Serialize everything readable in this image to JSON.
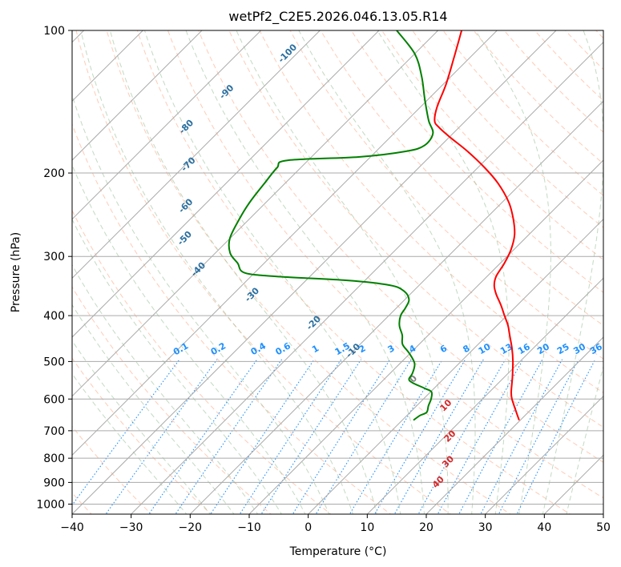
{
  "chart_data": {
    "type": "skew-t",
    "title": "wetPf2_C2E5.2026.046.13.05.R14",
    "xlabel": "Temperature (°C)",
    "ylabel": "Pressure (hPa)",
    "xlim": [
      -40,
      50
    ],
    "ylim": [
      1050,
      100
    ],
    "x_ticks": [
      -40,
      -30,
      -20,
      -10,
      0,
      10,
      20,
      30,
      40,
      50
    ],
    "x_tick_labels": [
      "−40",
      "−30",
      "−20",
      "−10",
      "0",
      "10",
      "20",
      "30",
      "40",
      "50"
    ],
    "y_ticks": [
      1000,
      900,
      800,
      700,
      600,
      500,
      400,
      300,
      200,
      100
    ],
    "y_tick_labels": [
      "1000",
      "900",
      "800",
      "700",
      "600",
      "500",
      "400",
      "300",
      "200",
      "100"
    ],
    "grid": true,
    "colors": {
      "temperature": "#ff0000",
      "dewpoint": "#008000",
      "isotherm": "#aaaaaa",
      "dry_adiabat": "#ffa07a",
      "moist_adiabat": "#8fbc8f",
      "mixing_ratio": "#1e90ff",
      "label_dark": "#2a6fa0",
      "label_light": "#1e90ff",
      "label_warm": "#d62728",
      "label_zero": "#808080",
      "tan_curve": "#d2b48c"
    },
    "series": [
      {
        "name": "Temperature",
        "color": "#ff0000",
        "points": [
          {
            "p": 665,
            "t": 19.8
          },
          {
            "p": 640,
            "t": 18.0
          },
          {
            "p": 600,
            "t": 15.0
          },
          {
            "p": 580,
            "t": 13.7
          },
          {
            "p": 540,
            "t": 11.4
          },
          {
            "p": 500,
            "t": 8.8
          },
          {
            "p": 470,
            "t": 6.5
          },
          {
            "p": 440,
            "t": 3.8
          },
          {
            "p": 420,
            "t": 1.9
          },
          {
            "p": 400,
            "t": -0.4
          },
          {
            "p": 380,
            "t": -2.8
          },
          {
            "p": 360,
            "t": -5.5
          },
          {
            "p": 345,
            "t": -7.3
          },
          {
            "p": 330,
            "t": -8.5
          },
          {
            "p": 310,
            "t": -9.3
          },
          {
            "p": 290,
            "t": -10.5
          },
          {
            "p": 270,
            "t": -12.4
          },
          {
            "p": 250,
            "t": -15.3
          },
          {
            "p": 230,
            "t": -19.0
          },
          {
            "p": 210,
            "t": -24.0
          },
          {
            "p": 195,
            "t": -28.8
          },
          {
            "p": 180,
            "t": -34.5
          },
          {
            "p": 168,
            "t": -39.9
          },
          {
            "p": 160,
            "t": -43.5
          },
          {
            "p": 155,
            "t": -45.3
          },
          {
            "p": 145,
            "t": -47.2
          },
          {
            "p": 130,
            "t": -49.5
          },
          {
            "p": 115,
            "t": -52.5
          },
          {
            "p": 100,
            "t": -56.0
          }
        ]
      },
      {
        "name": "Dewpoint",
        "color": "#008000",
        "points": [
          {
            "p": 665,
            "t": 1.9
          },
          {
            "p": 650,
            "t": 2.2
          },
          {
            "p": 640,
            "t": 2.8
          },
          {
            "p": 620,
            "t": 2.0
          },
          {
            "p": 600,
            "t": 1.3
          },
          {
            "p": 580,
            "t": 0.2
          },
          {
            "p": 570,
            "t": -1.5
          },
          {
            "p": 555,
            "t": -4.5
          },
          {
            "p": 545,
            "t": -5.8
          },
          {
            "p": 530,
            "t": -6.2
          },
          {
            "p": 505,
            "t": -7.5
          },
          {
            "p": 480,
            "t": -10.2
          },
          {
            "p": 460,
            "t": -12.8
          },
          {
            "p": 440,
            "t": -14.4
          },
          {
            "p": 420,
            "t": -16.5
          },
          {
            "p": 400,
            "t": -18.0
          },
          {
            "p": 385,
            "t": -18.5
          },
          {
            "p": 370,
            "t": -19.3
          },
          {
            "p": 355,
            "t": -21.6
          },
          {
            "p": 345,
            "t": -25.0
          },
          {
            "p": 337,
            "t": -33.0
          },
          {
            "p": 331,
            "t": -45.0
          },
          {
            "p": 325,
            "t": -51.6
          },
          {
            "p": 310,
            "t": -54.5
          },
          {
            "p": 295,
            "t": -57.5
          },
          {
            "p": 275,
            "t": -60.0
          },
          {
            "p": 250,
            "t": -61.7
          },
          {
            "p": 230,
            "t": -62.8
          },
          {
            "p": 210,
            "t": -63.5
          },
          {
            "p": 195,
            "t": -64.0
          },
          {
            "p": 188,
            "t": -63.5
          },
          {
            "p": 185,
            "t": -52.0
          },
          {
            "p": 180,
            "t": -45.0
          },
          {
            "p": 175,
            "t": -42.8
          },
          {
            "p": 165,
            "t": -43.4
          },
          {
            "p": 155,
            "t": -46.3
          },
          {
            "p": 140,
            "t": -50.5
          },
          {
            "p": 125,
            "t": -55.0
          },
          {
            "p": 112,
            "t": -60.0
          },
          {
            "p": 100,
            "t": -67.0
          }
        ]
      }
    ],
    "background_labels": {
      "dry_adiabats": [
        {
          "text": "-100",
          "value": -100
        },
        {
          "text": "-90",
          "value": -90
        },
        {
          "text": "-80",
          "value": -80
        },
        {
          "text": "-70",
          "value": -70
        },
        {
          "text": "-60",
          "value": -60
        },
        {
          "text": "-50",
          "value": -50
        },
        {
          "text": "-40",
          "value": -40
        },
        {
          "text": "-30",
          "value": -30
        },
        {
          "text": "-20",
          "value": -20
        },
        {
          "text": "-10",
          "value": -10
        },
        {
          "text": "0",
          "value": 0
        },
        {
          "text": "10",
          "value": 10
        },
        {
          "text": "20",
          "value": 20
        },
        {
          "text": "30",
          "value": 30
        },
        {
          "text": "40",
          "value": 40
        }
      ],
      "mixing_ratios": [
        {
          "text": "0.1",
          "value": 0.1
        },
        {
          "text": "0.2",
          "value": 0.2
        },
        {
          "text": "0.4",
          "value": 0.4
        },
        {
          "text": "0.6",
          "value": 0.6
        },
        {
          "text": "1",
          "value": 1
        },
        {
          "text": "1.5",
          "value": 1.5
        },
        {
          "text": "2",
          "value": 2
        },
        {
          "text": "3",
          "value": 3
        },
        {
          "text": "4",
          "value": 4
        },
        {
          "text": "6",
          "value": 6
        },
        {
          "text": "8",
          "value": 8
        },
        {
          "text": "10",
          "value": 10
        },
        {
          "text": "13",
          "value": 13
        },
        {
          "text": "16",
          "value": 16
        },
        {
          "text": "20",
          "value": 20
        },
        {
          "text": "25",
          "value": 25
        },
        {
          "text": "30",
          "value": 30
        },
        {
          "text": "36",
          "value": 36
        }
      ]
    }
  }
}
